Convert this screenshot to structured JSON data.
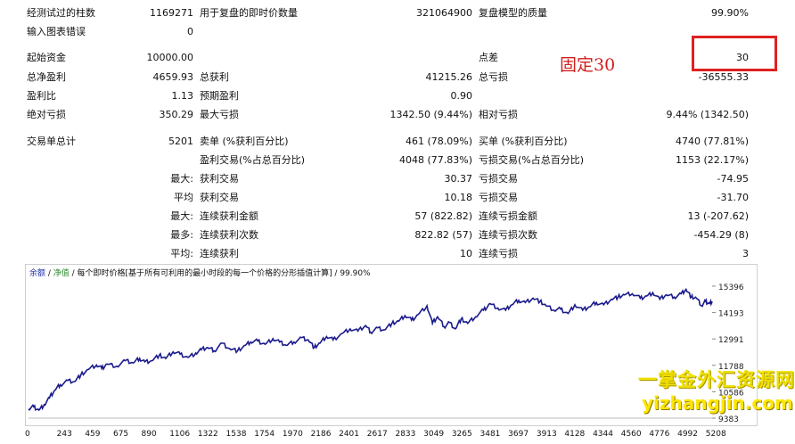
{
  "stats_top": [
    {
      "label": "经测试过的柱数",
      "value": "1169271"
    },
    {
      "label": "用于复盘的即时价数量",
      "value": "321064900"
    },
    {
      "label": "复盘模型的质量",
      "value": "99.90%"
    },
    {
      "label": "输入图表错误",
      "value": "0"
    }
  ],
  "stats_rows": {
    "initial_deposit": {
      "label": "起始资金",
      "value": "10000.00"
    },
    "spread": {
      "label": "点差",
      "value": "30"
    },
    "net_profit": {
      "label": "总净盈利",
      "value": "4659.93"
    },
    "gross_profit": {
      "label": "总获利",
      "value": "41215.26"
    },
    "gross_loss": {
      "label": "总亏损",
      "value": "-36555.33"
    },
    "profit_factor": {
      "label": "盈利比",
      "value": "1.13"
    },
    "expected_payoff": {
      "label": "预期盈利",
      "value": "0.90"
    },
    "abs_drawdown": {
      "label": "绝对亏损",
      "value": "350.29"
    },
    "max_drawdown": {
      "label": "最大亏损",
      "value": "1342.50 (9.44%)"
    },
    "rel_drawdown": {
      "label": "相对亏损",
      "value": "9.44% (1342.50)"
    },
    "total_trades": {
      "label": "交易单总计",
      "value": "5201"
    },
    "short_positions": {
      "label": "卖单 (%获利百分比)",
      "value": "461 (78.09%)"
    },
    "long_positions": {
      "label": "买单 (%获利百分比)",
      "value": "4740 (77.81%)"
    },
    "profit_trades": {
      "label": "盈利交易(%占总百分比)",
      "value": "4048 (77.83%)"
    },
    "loss_trades": {
      "label": "亏损交易(%占总百分比)",
      "value": "1153 (22.17%)"
    }
  },
  "stats_indented": [
    {
      "prefix": "最大:",
      "label": "获利交易",
      "value": "30.37",
      "label2": "亏损交易",
      "value2": "-74.95"
    },
    {
      "prefix": "平均",
      "label": "获利交易",
      "value": "10.18",
      "label2": "亏损交易",
      "value2": "-31.70"
    },
    {
      "prefix": "最大:",
      "label": "连续获利金额",
      "value": "57 (822.82)",
      "label2": "连续亏损金额",
      "value2": "13 (-207.62)"
    },
    {
      "prefix": "最多:",
      "label": "连续获利次数",
      "value": "822.82 (57)",
      "label2": "连续亏损次数",
      "value2": "-454.29 (8)"
    },
    {
      "prefix": "平均:",
      "label": "连续获利",
      "value": "10",
      "label2": "连续亏损",
      "value2": "3"
    }
  ],
  "annotation": "固定30",
  "chart_caption": {
    "balance": "余额",
    "sep1": " / ",
    "equity": "净值",
    "rest": " / 每个即时价格[基于所有可利用的最小时段的每一个价格的分形插值计算] / 99.90%"
  },
  "watermark": {
    "line1": "一掌金外汇资源网",
    "line2": "yizhangjin.com"
  },
  "colors": {
    "line": "#1a1a8c",
    "annotation": "#d21d1d",
    "box": "#e02020"
  },
  "chart_data": {
    "type": "line",
    "title": "",
    "x_ticks": [
      "0",
      "243",
      "459",
      "675",
      "890",
      "1106",
      "1322",
      "1538",
      "1754",
      "1970",
      "2186",
      "2401",
      "2617",
      "2833",
      "3049",
      "3265",
      "3481",
      "3697",
      "3913",
      "4128",
      "4344",
      "4560",
      "4776",
      "4992",
      "5208"
    ],
    "y_ticks": [
      "15396",
      "14193",
      "12991",
      "11788",
      "10586",
      "9383"
    ],
    "ylim": [
      9383,
      15800
    ],
    "series": [
      {
        "name": "余额",
        "x": [
          0,
          40,
          80,
          120,
          160,
          200,
          243,
          300,
          350,
          400,
          459,
          520,
          560,
          600,
          675,
          740,
          800,
          850,
          890,
          940,
          1000,
          1050,
          1106,
          1160,
          1220,
          1280,
          1322,
          1370,
          1420,
          1480,
          1538,
          1600,
          1660,
          1700,
          1754,
          1810,
          1870,
          1920,
          1970,
          2030,
          2090,
          2140,
          2186,
          2230,
          2280,
          2330,
          2401,
          2460,
          2520,
          2580,
          2617,
          2670,
          2720,
          2780,
          2833,
          2880,
          2930,
          2980,
          3049,
          3090,
          3130,
          3180,
          3220,
          3265,
          3310,
          3360,
          3420,
          3481,
          3530,
          3590,
          3650,
          3697,
          3750,
          3800,
          3860,
          3913,
          3960,
          4020,
          4070,
          4128,
          4180,
          4240,
          4290,
          4344,
          4400,
          4460,
          4510,
          4560,
          4620,
          4680,
          4730,
          4776,
          4830,
          4880,
          4940,
          4992,
          5030,
          5070,
          5110,
          5150,
          5180,
          5208,
          5230
        ],
        "y": [
          9800,
          9900,
          9750,
          10000,
          10300,
          10650,
          10900,
          11100,
          11050,
          11350,
          11600,
          11800,
          11650,
          11850,
          11750,
          12000,
          11900,
          12100,
          11950,
          12000,
          12250,
          12100,
          12400,
          12300,
          12150,
          12350,
          12500,
          12600,
          12450,
          12800,
          12550,
          12450,
          12700,
          12850,
          12900,
          12750,
          13000,
          12850,
          12700,
          12850,
          13050,
          12950,
          12600,
          12800,
          13100,
          12950,
          13250,
          13450,
          13350,
          13600,
          13300,
          13500,
          13400,
          13700,
          13800,
          14050,
          13850,
          14100,
          14500,
          13700,
          14000,
          13550,
          13750,
          13450,
          13900,
          13700,
          14000,
          14300,
          14600,
          14400,
          14300,
          14550,
          14750,
          14650,
          14850,
          14700,
          14500,
          14300,
          14350,
          14150,
          14550,
          14300,
          14450,
          14650,
          14550,
          14800,
          14900,
          15000,
          15050,
          14850,
          14950,
          15100,
          14800,
          15000,
          14900,
          15050,
          15250,
          14900,
          14850,
          14500,
          14700,
          14600,
          14700
        ]
      }
    ]
  }
}
